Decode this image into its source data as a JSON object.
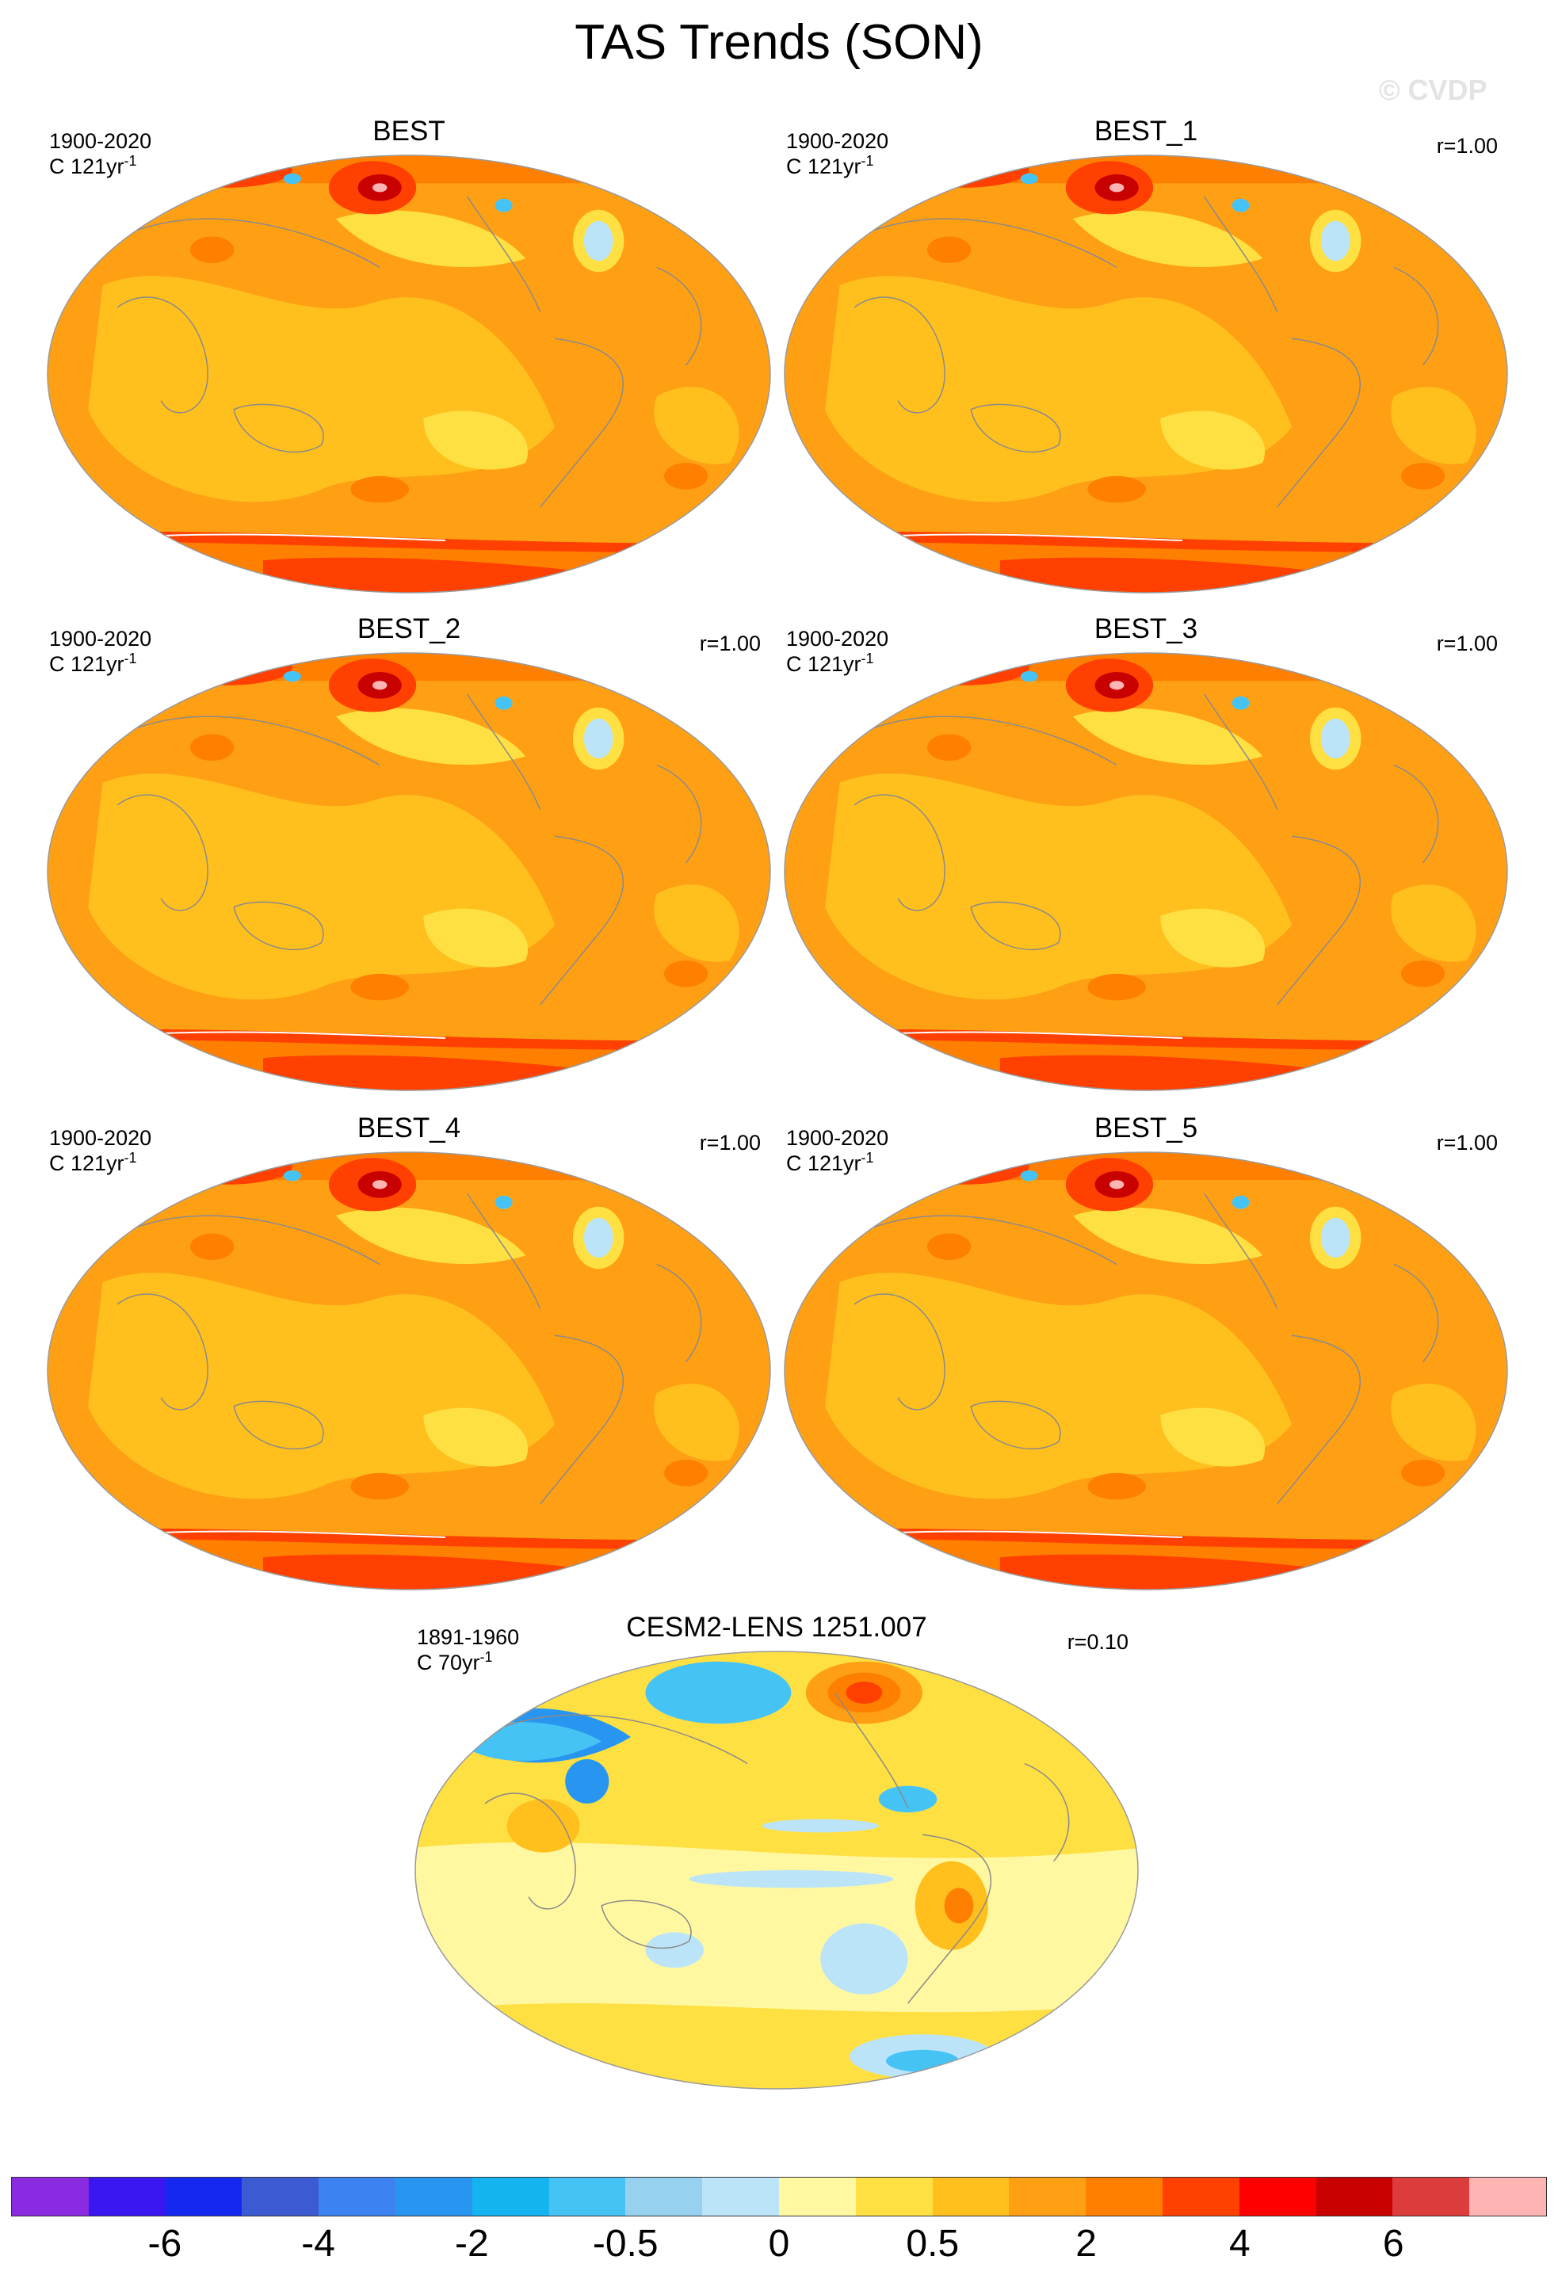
{
  "title": "TAS Trends (SON)",
  "watermark": "© CVDP",
  "panels": [
    {
      "name": "BEST",
      "years": "1900-2020",
      "units_prefix": "C 121yr",
      "units_exp": "-1",
      "corr": "",
      "variant": "warm"
    },
    {
      "name": "BEST_1",
      "years": "1900-2020",
      "units_prefix": "C 121yr",
      "units_exp": "-1",
      "corr": "r=1.00",
      "variant": "warm"
    },
    {
      "name": "BEST_2",
      "years": "1900-2020",
      "units_prefix": "C 121yr",
      "units_exp": "-1",
      "corr": "r=1.00",
      "variant": "warm"
    },
    {
      "name": "BEST_3",
      "years": "1900-2020",
      "units_prefix": "C 121yr",
      "units_exp": "-1",
      "corr": "r=1.00",
      "variant": "warm"
    },
    {
      "name": "BEST_4",
      "years": "1900-2020",
      "units_prefix": "C 121yr",
      "units_exp": "-1",
      "corr": "r=1.00",
      "variant": "warm"
    },
    {
      "name": "BEST_5",
      "years": "1900-2020",
      "units_prefix": "C 121yr",
      "units_exp": "-1",
      "corr": "r=1.00",
      "variant": "warm"
    },
    {
      "name": "CESM2-LENS 1251.007",
      "years": "1891-1960",
      "units_prefix": "C 70yr",
      "units_exp": "-1",
      "corr": "r=0.10",
      "variant": "mixed"
    }
  ],
  "colorbar": {
    "colors": [
      "#8a2be2",
      "#3a16f0",
      "#1428f0",
      "#3c5ad2",
      "#3c82f0",
      "#2896f0",
      "#14b4f0",
      "#46c3f5",
      "#96d2f0",
      "#bce4f8",
      "#fff8a0",
      "#ffe042",
      "#ffc01e",
      "#ffa014",
      "#ff8000",
      "#ff4000",
      "#ff0000",
      "#c80000",
      "#dc3c3c",
      "#ffb4b4"
    ],
    "labels": [
      "-6",
      "-4",
      "-2",
      "-0.5",
      "0",
      "0.5",
      "2",
      "4",
      "6"
    ],
    "label_boundaries": [
      2,
      4,
      6,
      8,
      10,
      12,
      14,
      16,
      18
    ]
  },
  "map_colors": {
    "ocean_base": "#ffa014",
    "land_base": "#ffc01e",
    "warm_yellow": "#ffe042",
    "pale": "#fff8a0",
    "orange2": "#ff8000",
    "red": "#ff4000",
    "darkred": "#c80000",
    "lightblue": "#bce4f8",
    "blue": "#96d2f0",
    "midblue": "#46c3f5",
    "coast": "#8a8a8a"
  }
}
